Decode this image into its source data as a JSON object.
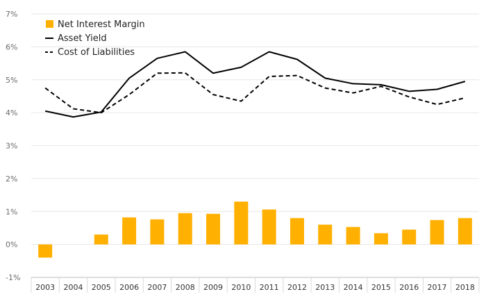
{
  "chart_data": {
    "type": "bar+line",
    "categories": [
      "2003",
      "2004",
      "2005",
      "2006",
      "2007",
      "2008",
      "2009",
      "2010",
      "2011",
      "2012",
      "2013",
      "2014",
      "2015",
      "2016",
      "2017",
      "2018"
    ],
    "series": [
      {
        "name": "Net Interest Margin",
        "type": "bar",
        "color": "#FFB000",
        "values": [
          -0.4,
          0.0,
          0.3,
          0.82,
          0.76,
          0.95,
          0.93,
          1.3,
          1.06,
          0.8,
          0.6,
          0.53,
          0.34,
          0.45,
          0.74,
          0.8
        ]
      },
      {
        "name": "Asset Yield",
        "type": "line",
        "style": "solid",
        "color": "#000000",
        "values": [
          4.05,
          3.87,
          4.02,
          5.05,
          5.65,
          5.85,
          5.2,
          5.38,
          5.85,
          5.62,
          5.05,
          4.88,
          4.85,
          4.65,
          4.71,
          4.95
        ]
      },
      {
        "name": "Cost of Liabilities",
        "type": "line",
        "style": "dashed",
        "color": "#000000",
        "values": [
          4.75,
          4.12,
          4.0,
          4.55,
          5.2,
          5.21,
          4.55,
          4.35,
          5.1,
          5.13,
          4.75,
          4.6,
          4.8,
          4.48,
          4.25,
          4.45
        ]
      }
    ],
    "y_ticks": [
      "7%",
      "6%",
      "5%",
      "4%",
      "3%",
      "2%",
      "1%",
      "0%",
      "-1%"
    ],
    "ylim": [
      -1,
      7
    ],
    "grid": "horizontal",
    "legend_position": "top-left"
  }
}
